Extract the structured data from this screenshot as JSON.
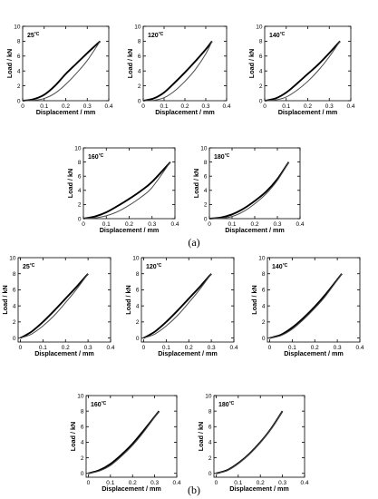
{
  "figure": {
    "caption_a": "(a)",
    "caption_b": "(b)"
  },
  "chart_data": [
    {
      "type": "line",
      "group": "a",
      "temp": "25",
      "temp_unit": "°C",
      "xlabel": "Displacement / mm",
      "ylabel": "Load / kN",
      "xlim": [
        0,
        0.4
      ],
      "ylim": [
        0,
        10
      ],
      "xticks": [
        0,
        0.1,
        0.2,
        0.3,
        0.4
      ],
      "yticks": [
        0,
        2,
        4,
        6,
        8,
        10
      ],
      "grid": false,
      "series": [
        {
          "x": [
            0,
            0.05,
            0.1,
            0.15,
            0.2,
            0.25,
            0.3,
            0.36
          ],
          "y": [
            0,
            0.2,
            0.8,
            2.0,
            3.6,
            5.0,
            6.4,
            8.0
          ]
        },
        {
          "x": [
            0,
            0.05,
            0.1,
            0.15,
            0.2,
            0.25,
            0.3,
            0.36
          ],
          "y": [
            0,
            0.05,
            0.3,
            1.0,
            2.2,
            3.7,
            5.4,
            8.0
          ]
        }
      ]
    },
    {
      "type": "line",
      "group": "a",
      "temp": "120",
      "temp_unit": "°C",
      "xlabel": "Displacement / mm",
      "ylabel": "Load / kN",
      "xlim": [
        0,
        0.4
      ],
      "ylim": [
        0,
        10
      ],
      "xticks": [
        0,
        0.1,
        0.2,
        0.3,
        0.4
      ],
      "yticks": [
        0,
        2,
        4,
        6,
        8,
        10
      ],
      "grid": false,
      "series": [
        {
          "x": [
            0,
            0.05,
            0.1,
            0.15,
            0.2,
            0.25,
            0.3,
            0.33
          ],
          "y": [
            0,
            0.3,
            1.1,
            2.4,
            3.8,
            5.3,
            6.9,
            8.0
          ]
        },
        {
          "x": [
            0,
            0.05,
            0.1,
            0.15,
            0.2,
            0.25,
            0.3,
            0.33
          ],
          "y": [
            0,
            0.05,
            0.4,
            1.3,
            2.6,
            4.2,
            6.3,
            8.0
          ]
        }
      ]
    },
    {
      "type": "line",
      "group": "a",
      "temp": "140",
      "temp_unit": "°C",
      "xlabel": "Displacement / mm",
      "ylabel": "Load / kN",
      "xlim": [
        0,
        0.4
      ],
      "ylim": [
        0,
        10
      ],
      "xticks": [
        0,
        0.1,
        0.2,
        0.3,
        0.4
      ],
      "yticks": [
        0,
        2,
        4,
        6,
        8,
        10
      ],
      "grid": false,
      "series": [
        {
          "x": [
            0,
            0.05,
            0.1,
            0.15,
            0.2,
            0.25,
            0.3,
            0.35
          ],
          "y": [
            0,
            0.3,
            1.1,
            2.3,
            3.6,
            4.9,
            6.4,
            8.0
          ]
        },
        {
          "x": [
            0,
            0.05,
            0.1,
            0.15,
            0.2,
            0.25,
            0.3,
            0.35
          ],
          "y": [
            0,
            0.1,
            0.5,
            1.4,
            2.6,
            4.1,
            5.9,
            8.0
          ]
        }
      ]
    },
    {
      "type": "line",
      "group": "a",
      "temp": "160",
      "temp_unit": "°C",
      "xlabel": "Displacement / mm",
      "ylabel": "Load / kN",
      "xlim": [
        0,
        0.4
      ],
      "ylim": [
        0,
        10
      ],
      "xticks": [
        0,
        0.1,
        0.2,
        0.3,
        0.4
      ],
      "yticks": [
        0,
        2,
        4,
        6,
        8,
        10
      ],
      "grid": false,
      "series": [
        {
          "x": [
            0,
            0.05,
            0.1,
            0.15,
            0.2,
            0.25,
            0.3,
            0.38
          ],
          "y": [
            0,
            0.3,
            0.9,
            1.8,
            2.8,
            3.9,
            5.2,
            8.0
          ]
        },
        {
          "x": [
            0,
            0.05,
            0.1,
            0.15,
            0.2,
            0.25,
            0.3,
            0.38
          ],
          "y": [
            0,
            0.1,
            0.4,
            1.0,
            1.9,
            3.0,
            4.4,
            8.0
          ]
        }
      ]
    },
    {
      "type": "line",
      "group": "a",
      "temp": "180",
      "temp_unit": "°C",
      "xlabel": "Displacement / mm",
      "ylabel": "Load / kN",
      "xlim": [
        0,
        0.4
      ],
      "ylim": [
        0,
        10
      ],
      "xticks": [
        0,
        0.1,
        0.2,
        0.3,
        0.4
      ],
      "yticks": [
        0,
        2,
        4,
        6,
        8,
        10
      ],
      "grid": false,
      "series": [
        {
          "x": [
            0,
            0.05,
            0.1,
            0.15,
            0.2,
            0.25,
            0.3,
            0.35
          ],
          "y": [
            0,
            0.15,
            0.6,
            1.4,
            2.5,
            3.8,
            5.6,
            8.0
          ]
        },
        {
          "x": [
            0,
            0.05,
            0.1,
            0.15,
            0.2,
            0.25,
            0.3,
            0.35
          ],
          "y": [
            0,
            0.05,
            0.3,
            1.0,
            2.1,
            3.5,
            5.4,
            8.0
          ]
        }
      ]
    },
    {
      "type": "line",
      "group": "b",
      "temp": "25",
      "temp_unit": "°C",
      "xlabel": "Displacement / mm",
      "ylabel": "Load / kN",
      "xlim": [
        -0.01,
        0.4
      ],
      "ylim": [
        -0.5,
        10
      ],
      "xticks": [
        0,
        0.1,
        0.2,
        0.3,
        0.4
      ],
      "yticks": [
        0,
        2,
        4,
        6,
        8,
        10
      ],
      "grid": false,
      "series": [
        {
          "x": [
            0,
            0.05,
            0.1,
            0.15,
            0.2,
            0.25,
            0.3
          ],
          "y": [
            0,
            0.8,
            2.0,
            3.4,
            4.9,
            6.4,
            8.0
          ]
        },
        {
          "x": [
            0,
            0.05,
            0.1,
            0.15,
            0.2,
            0.25,
            0.3
          ],
          "y": [
            0,
            0.5,
            1.5,
            2.8,
            4.4,
            6.1,
            8.0
          ]
        }
      ]
    },
    {
      "type": "line",
      "group": "b",
      "temp": "120",
      "temp_unit": "°C",
      "xlabel": "Displacement / mm",
      "ylabel": "Load / kN",
      "xlim": [
        -0.01,
        0.4
      ],
      "ylim": [
        -0.5,
        10
      ],
      "xticks": [
        0,
        0.1,
        0.2,
        0.3,
        0.4
      ],
      "yticks": [
        0,
        2,
        4,
        6,
        8,
        10
      ],
      "grid": false,
      "series": [
        {
          "x": [
            0,
            0.05,
            0.1,
            0.15,
            0.2,
            0.25,
            0.3
          ],
          "y": [
            0,
            0.8,
            2.0,
            3.4,
            4.9,
            6.4,
            8.0
          ]
        },
        {
          "x": [
            0,
            0.05,
            0.1,
            0.15,
            0.2,
            0.25,
            0.3
          ],
          "y": [
            0,
            0.5,
            1.5,
            2.8,
            4.4,
            6.1,
            8.0
          ]
        }
      ]
    },
    {
      "type": "line",
      "group": "b",
      "temp": "140",
      "temp_unit": "°C",
      "xlabel": "Displacement / mm",
      "ylabel": "Load / kN",
      "xlim": [
        -0.01,
        0.4
      ],
      "ylim": [
        -0.5,
        10
      ],
      "xticks": [
        0,
        0.1,
        0.2,
        0.3,
        0.4
      ],
      "yticks": [
        0,
        2,
        4,
        6,
        8,
        10
      ],
      "grid": false,
      "series": [
        {
          "x": [
            0,
            0.05,
            0.1,
            0.15,
            0.2,
            0.25,
            0.32
          ],
          "y": [
            0,
            0.4,
            1.3,
            2.5,
            3.9,
            5.5,
            8.0
          ]
        },
        {
          "x": [
            0,
            0.05,
            0.1,
            0.15,
            0.2,
            0.25,
            0.32
          ],
          "y": [
            0,
            0.3,
            1.1,
            2.3,
            3.7,
            5.3,
            8.0
          ]
        }
      ]
    },
    {
      "type": "line",
      "group": "b",
      "temp": "160",
      "temp_unit": "°C",
      "xlabel": "Displacement / mm",
      "ylabel": "Load / kN",
      "xlim": [
        -0.01,
        0.4
      ],
      "ylim": [
        -0.5,
        10
      ],
      "xticks": [
        0,
        0.1,
        0.2,
        0.3,
        0.4
      ],
      "yticks": [
        0,
        2,
        4,
        6,
        8,
        10
      ],
      "grid": false,
      "series": [
        {
          "x": [
            0,
            0.05,
            0.1,
            0.15,
            0.2,
            0.25,
            0.32
          ],
          "y": [
            0,
            0.4,
            1.2,
            2.4,
            3.8,
            5.5,
            8.0
          ]
        },
        {
          "x": [
            0,
            0.05,
            0.1,
            0.15,
            0.2,
            0.25,
            0.32
          ],
          "y": [
            0,
            0.3,
            1.0,
            2.2,
            3.6,
            5.3,
            8.0
          ]
        }
      ]
    },
    {
      "type": "line",
      "group": "b",
      "temp": "180",
      "temp_unit": "°C",
      "xlabel": "Displacement / mm",
      "ylabel": "Load / kN",
      "xlim": [
        -0.01,
        0.4
      ],
      "ylim": [
        -0.5,
        10
      ],
      "xticks": [
        0,
        0.1,
        0.2,
        0.3,
        0.4
      ],
      "yticks": [
        0,
        2,
        4,
        6,
        8,
        10
      ],
      "grid": false,
      "series": [
        {
          "x": [
            0,
            0.05,
            0.1,
            0.15,
            0.2,
            0.25,
            0.3
          ],
          "y": [
            0,
            0.4,
            1.3,
            2.5,
            4.0,
            5.8,
            8.0
          ]
        },
        {
          "x": [
            0,
            0.05,
            0.1,
            0.15,
            0.2,
            0.25,
            0.3
          ],
          "y": [
            0,
            0.35,
            1.25,
            2.45,
            3.95,
            5.75,
            8.0
          ]
        }
      ]
    }
  ]
}
